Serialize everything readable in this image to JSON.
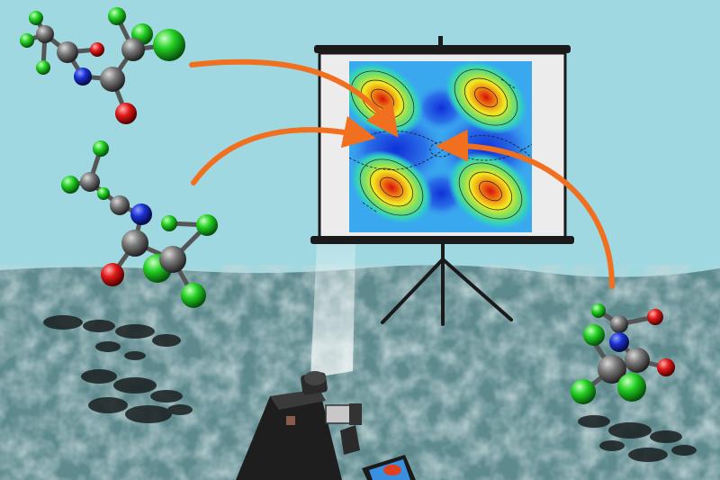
{
  "scene": {
    "sky_color": "#9fd8e0",
    "floor_color": "#5e8a8e",
    "arrow_color": "#f07020",
    "screen_frame_color": "#1a1a1a"
  },
  "atom_colors": {
    "carbon": "#6e6e6e",
    "nitrogen": "#1830d0",
    "oxygen": "#e01818",
    "fluorine": "#22d022"
  },
  "icons": [
    "projector-screen-icon",
    "tripod-icon",
    "video-camera-icon",
    "molecule-icon",
    "arrow-icon"
  ]
}
